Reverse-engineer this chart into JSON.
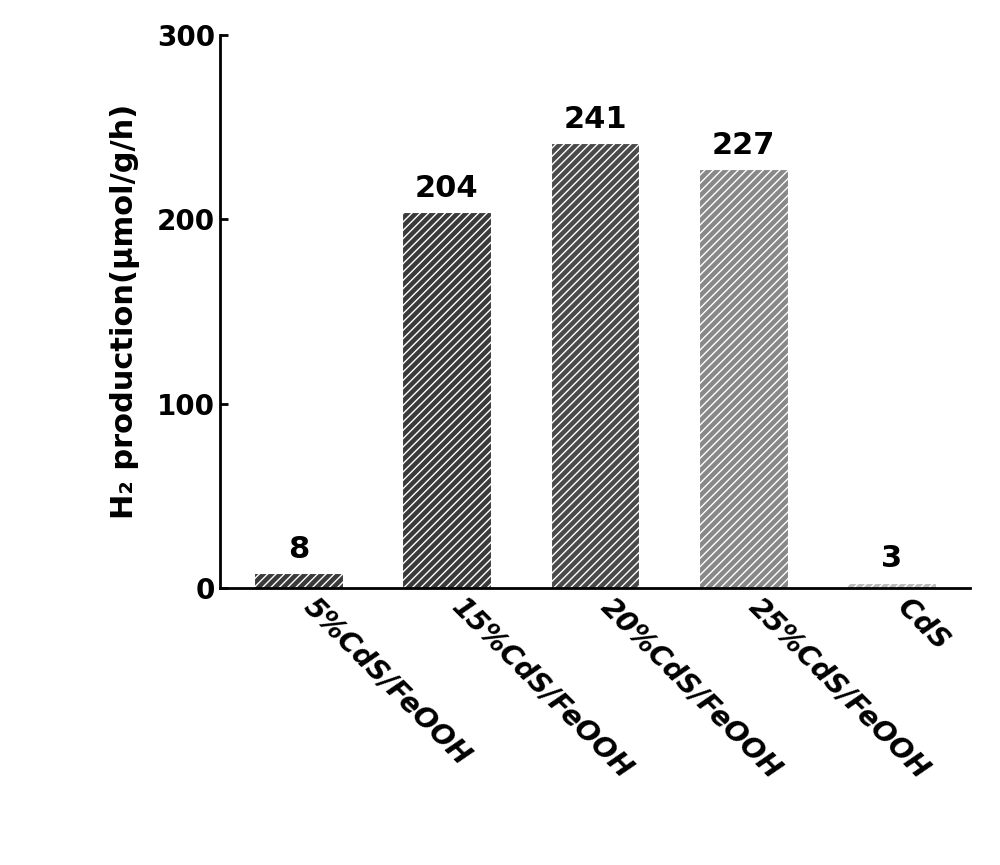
{
  "categories": [
    "5%CdS/FeOOH",
    "15%CdS/FeOOH",
    "20%CdS/FeOOH",
    "25%CdS/FeOOH",
    "CdS"
  ],
  "values": [
    8,
    204,
    241,
    227,
    3
  ],
  "ylabel": "H₂ production(μmol/g/h)",
  "ylim": [
    0,
    300
  ],
  "yticks": [
    0,
    100,
    200,
    300
  ],
  "bar_colors": [
    "#3a3a3a",
    "#3a3a3a",
    "#4a4a4a",
    "#888888",
    "#bbbbbb"
  ],
  "hatch_patterns": [
    "////",
    "////",
    "////",
    "////",
    "////"
  ],
  "hatch_colors": [
    "#ffffff",
    "#ffffff",
    "#ffffff",
    "#ffffff",
    "#ffffff"
  ],
  "label_fontsize": 22,
  "tick_fontsize": 20,
  "value_fontsize": 22,
  "xlabel_rotation": -45,
  "background_color": "#ffffff",
  "bar_width": 0.6,
  "figsize": [
    10.0,
    8.65
  ],
  "dpi": 100
}
